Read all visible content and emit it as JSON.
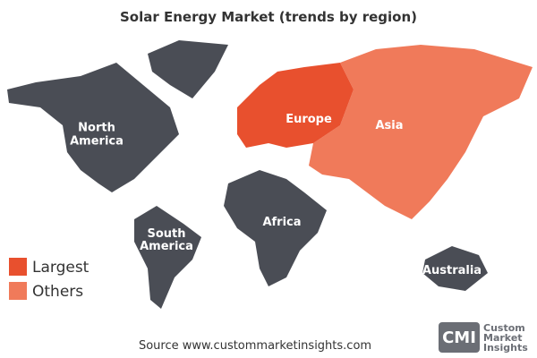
{
  "title": "Solar Energy  Market  (trends by region)",
  "regions": [
    {
      "label": [
        "North",
        "America"
      ],
      "color": "#4a4d55"
    },
    {
      "label": [
        "South",
        "America"
      ],
      "color": "#4a4d55"
    },
    {
      "label": [
        "Africa"
      ],
      "color": "#4a4d55"
    },
    {
      "label": [
        "Europe"
      ],
      "color": "#e8502e"
    },
    {
      "label": [
        "Asia"
      ],
      "color": "#f07a5a"
    },
    {
      "label": [
        "Australia"
      ],
      "color": "#4a4d55"
    }
  ],
  "legend": [
    {
      "label": "Largest",
      "color": "#e8502e"
    },
    {
      "label": "Others",
      "color": "#f07a5a"
    }
  ],
  "source": "Source www.custommarketinsights.com",
  "logo": {
    "mark": "CMI",
    "lines": [
      "Custom",
      "Market",
      "Insights"
    ]
  }
}
